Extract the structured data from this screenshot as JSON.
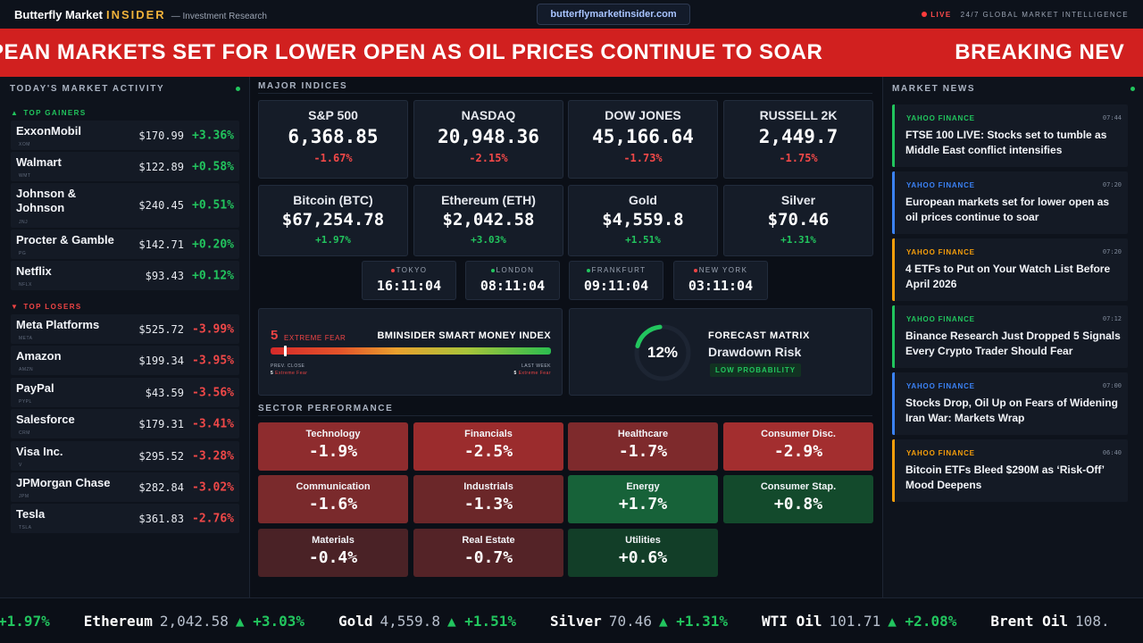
{
  "header": {
    "brand_main": "Butterfly Market",
    "brand_accent": "INSIDER",
    "brand_sub": "— Investment Research",
    "url": "butterflymarketinsider.com",
    "live_label": "LIVE",
    "tagline": "24/7 GLOBAL MARKET INTELLIGENCE"
  },
  "banner": {
    "headline": "PEAN MARKETS SET FOR LOWER OPEN AS OIL PRICES CONTINUE TO SOAR",
    "next": "BREAKING NEV"
  },
  "market_activity": {
    "title": "TODAY'S MARKET ACTIVITY",
    "gainers_label": "TOP GAINERS",
    "losers_label": "TOP LOSERS",
    "gainers": [
      {
        "name": "ExxonMobil",
        "ticker": "XOM",
        "price": "$170.99",
        "change": "+3.36%"
      },
      {
        "name": "Walmart",
        "ticker": "WMT",
        "price": "$122.89",
        "change": "+0.58%"
      },
      {
        "name": "Johnson & Johnson",
        "ticker": "JNJ",
        "price": "$240.45",
        "change": "+0.51%"
      },
      {
        "name": "Procter & Gamble",
        "ticker": "PG",
        "price": "$142.71",
        "change": "+0.20%"
      },
      {
        "name": "Netflix",
        "ticker": "NFLX",
        "price": "$93.43",
        "change": "+0.12%"
      }
    ],
    "losers": [
      {
        "name": "Meta Platforms",
        "ticker": "META",
        "price": "$525.72",
        "change": "-3.99%"
      },
      {
        "name": "Amazon",
        "ticker": "AMZN",
        "price": "$199.34",
        "change": "-3.95%"
      },
      {
        "name": "PayPal",
        "ticker": "PYPL",
        "price": "$43.59",
        "change": "-3.56%"
      },
      {
        "name": "Salesforce",
        "ticker": "CRM",
        "price": "$179.31",
        "change": "-3.41%"
      },
      {
        "name": "Visa Inc.",
        "ticker": "V",
        "price": "$295.52",
        "change": "-3.28%"
      },
      {
        "name": "JPMorgan Chase",
        "ticker": "JPM",
        "price": "$282.84",
        "change": "-3.02%"
      },
      {
        "name": "Tesla",
        "ticker": "TSLA",
        "price": "$361.83",
        "change": "-2.76%"
      }
    ]
  },
  "indices": {
    "title": "MAJOR INDICES",
    "items": [
      {
        "name": "S&P 500",
        "value": "6,368.85",
        "change": "-1.67%"
      },
      {
        "name": "NASDAQ",
        "value": "20,948.36",
        "change": "-2.15%"
      },
      {
        "name": "DOW JONES",
        "value": "45,166.64",
        "change": "-1.73%"
      },
      {
        "name": "RUSSELL 2K",
        "value": "2,449.7",
        "change": "-1.75%"
      }
    ],
    "assets": [
      {
        "name": "Bitcoin (BTC)",
        "value": "$67,254.78",
        "change": "+1.97%"
      },
      {
        "name": "Ethereum (ETH)",
        "value": "$2,042.58",
        "change": "+3.03%"
      },
      {
        "name": "Gold",
        "value": "$4,559.8",
        "change": "+1.51%"
      },
      {
        "name": "Silver",
        "value": "$70.46",
        "change": "+1.31%"
      }
    ]
  },
  "clocks": [
    {
      "city": "TOKYO",
      "time": "16:11:04",
      "dot_color": "#ef4444"
    },
    {
      "city": "LONDON",
      "time": "08:11:04",
      "dot_color": "#22c55e"
    },
    {
      "city": "FRANKFURT",
      "time": "09:11:04",
      "dot_color": "#22c55e"
    },
    {
      "city": "NEW YORK",
      "time": "03:11:04",
      "dot_color": "#ef4444"
    }
  ],
  "smart_money": {
    "value": "5",
    "label": "EXTREME FEAR",
    "title": "BMINSIDER SMART MONEY INDEX",
    "level_fraction": 0.05,
    "prev_label": "PREV. CLOSE",
    "prev_value": "5",
    "prev_text": "Extreme Fear",
    "week_label": "LAST WEEK",
    "week_value": "5",
    "week_text": "Extreme Fear"
  },
  "forecast": {
    "percent": "12%",
    "percent_fraction": 0.12,
    "kicker": "FORECAST MATRIX",
    "title": "Drawdown Risk",
    "badge": "LOW PROBABILITY"
  },
  "sectors": {
    "title": "SECTOR PERFORMANCE",
    "items": [
      {
        "name": "Technology",
        "value": "-1.9%",
        "color": "#8e2c2e"
      },
      {
        "name": "Financials",
        "value": "-2.5%",
        "color": "#9b2c2d"
      },
      {
        "name": "Healthcare",
        "value": "-1.7%",
        "color": "#7e2a2c"
      },
      {
        "name": "Consumer Disc.",
        "value": "-2.9%",
        "color": "#a32e2f"
      },
      {
        "name": "Communication",
        "value": "-1.6%",
        "color": "#7a2a2c"
      },
      {
        "name": "Industrials",
        "value": "-1.3%",
        "color": "#6b2729"
      },
      {
        "name": "Energy",
        "value": "+1.7%",
        "color": "#176239"
      },
      {
        "name": "Consumer Stap.",
        "value": "+0.8%",
        "color": "#134a2c"
      },
      {
        "name": "Materials",
        "value": "-0.4%",
        "color": "#4a2226"
      },
      {
        "name": "Real Estate",
        "value": "-0.7%",
        "color": "#542327"
      },
      {
        "name": "Utilities",
        "value": "+0.6%",
        "color": "#123e28"
      }
    ]
  },
  "news": {
    "title": "MARKET NEWS",
    "items": [
      {
        "source": "YAHOO FINANCE",
        "time": "07:44",
        "headline": "FTSE 100 LIVE: Stocks set to tumble as Middle East conflict intensifies",
        "accent": "#21c55d",
        "src_color": "#21c55d"
      },
      {
        "source": "YAHOO FINANCE",
        "time": "07:20",
        "headline": "European markets set for lower open as oil prices continue to soar",
        "accent": "#3b82f6",
        "src_color": "#3b82f6"
      },
      {
        "source": "YAHOO FINANCE",
        "time": "07:20",
        "headline": "4 ETFs to Put on Your Watch List Before April 2026",
        "accent": "#f59e0b",
        "src_color": "#f59e0b"
      },
      {
        "source": "YAHOO FINANCE",
        "time": "07:12",
        "headline": "Binance Research Just Dropped 5 Signals Every Crypto Trader Should Fear",
        "accent": "#21c55d",
        "src_color": "#21c55d"
      },
      {
        "source": "YAHOO FINANCE",
        "time": "07:00",
        "headline": "Stocks Drop, Oil Up on Fears of Widening Iran War: Markets Wrap",
        "accent": "#3b82f6",
        "src_color": "#3b82f6"
      },
      {
        "source": "YAHOO FINANCE",
        "time": "06:40",
        "headline": "Bitcoin ETFs Bleed $290M as ‘Risk-Off’ Mood Deepens",
        "accent": "#f59e0b",
        "src_color": "#f59e0b"
      }
    ]
  },
  "ticker": [
    {
      "name": "",
      "value": "",
      "change": "+1.97%"
    },
    {
      "name": "Ethereum",
      "value": "2,042.58",
      "change": "▲ +3.03%"
    },
    {
      "name": "Gold",
      "value": "4,559.8",
      "change": "▲ +1.51%"
    },
    {
      "name": "Silver",
      "value": "70.46",
      "change": "▲ +1.31%"
    },
    {
      "name": "WTI Oil",
      "value": "101.71",
      "change": "▲ +2.08%"
    },
    {
      "name": "Brent Oil",
      "value": "108.",
      "change": ""
    }
  ]
}
